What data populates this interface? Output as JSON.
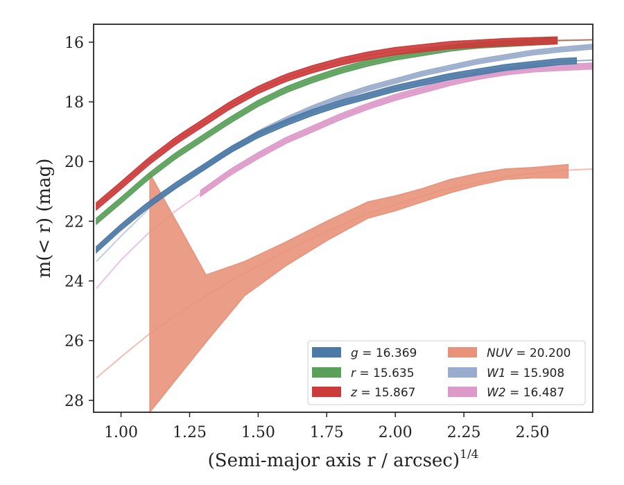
{
  "chart_data": {
    "type": "line",
    "title": "",
    "xlabel": "(Semi-major axis r / arcsec)",
    "xlabel_exponent": "1/4",
    "ylabel": "m(< r) (mag)",
    "xlim": [
      0.9,
      2.72
    ],
    "ylim": [
      28.4,
      15.4
    ],
    "y_inverted": true,
    "grid": false,
    "legend_position": "lower-right",
    "x_ticks": [
      "1.00",
      "1.25",
      "1.50",
      "1.75",
      "2.00",
      "2.25",
      "2.50"
    ],
    "x_tick_values": [
      1.0,
      1.25,
      1.5,
      1.75,
      2.0,
      2.25,
      2.5
    ],
    "y_ticks": [
      "16",
      "18",
      "20",
      "22",
      "24",
      "26",
      "28"
    ],
    "y_tick_values": [
      16,
      18,
      20,
      22,
      24,
      26,
      28
    ],
    "series": [
      {
        "name": "g",
        "legend": "g = 16.369",
        "color": "#4c7aa6",
        "model_x": [
          0.91,
          1.0,
          1.1,
          1.2,
          1.3,
          1.4,
          1.5,
          1.6,
          1.7,
          1.8,
          1.9,
          2.0,
          2.1,
          2.2,
          2.3,
          2.4,
          2.5,
          2.6,
          2.72
        ],
        "model_y": [
          22.95,
          22.2,
          21.45,
          20.8,
          20.2,
          19.6,
          19.1,
          18.7,
          18.35,
          18.05,
          17.8,
          17.55,
          17.35,
          17.15,
          17.0,
          16.85,
          16.75,
          16.65,
          16.6
        ],
        "data_x": [
          0.91,
          2.66
        ],
        "band_width": 0.1
      },
      {
        "name": "r",
        "legend": "r = 15.635",
        "color": "#5aa05a",
        "model_x": [
          0.91,
          1.0,
          1.1,
          1.2,
          1.3,
          1.4,
          1.5,
          1.6,
          1.7,
          1.8,
          1.9,
          2.0,
          2.1,
          2.2,
          2.3,
          2.4,
          2.5,
          2.6,
          2.72
        ],
        "model_y": [
          22.0,
          21.3,
          20.5,
          19.8,
          19.2,
          18.6,
          18.05,
          17.6,
          17.25,
          16.95,
          16.7,
          16.5,
          16.35,
          16.2,
          16.1,
          16.05,
          16.0,
          15.95,
          15.92
        ],
        "data_x": [
          0.91,
          2.59
        ],
        "band_width": 0.1
      },
      {
        "name": "z",
        "legend": "z = 15.867",
        "color": "#cc3a3a",
        "model_x": [
          0.91,
          1.0,
          1.1,
          1.2,
          1.3,
          1.4,
          1.5,
          1.6,
          1.7,
          1.8,
          1.9,
          2.0,
          2.1,
          2.2,
          2.3,
          2.4,
          2.5,
          2.6,
          2.72
        ],
        "model_y": [
          21.5,
          20.8,
          20.0,
          19.3,
          18.7,
          18.1,
          17.6,
          17.2,
          16.9,
          16.65,
          16.45,
          16.3,
          16.2,
          16.1,
          16.05,
          16.0,
          15.97,
          15.94,
          15.92
        ],
        "data_x": [
          0.91,
          2.59
        ],
        "band_width": 0.12
      },
      {
        "name": "NUV",
        "legend": "NUV = 20.200",
        "color": "#e8927a",
        "model_x": [
          0.91,
          1.0,
          1.1,
          1.2,
          1.3,
          1.4,
          1.5,
          1.6,
          1.7,
          1.8,
          1.9,
          2.0,
          2.1,
          2.2,
          2.3,
          2.4,
          2.5,
          2.6,
          2.72
        ],
        "model_y": [
          27.25,
          26.55,
          25.8,
          25.15,
          24.55,
          24.0,
          23.5,
          23.0,
          22.55,
          22.15,
          21.75,
          21.45,
          21.15,
          20.9,
          20.7,
          20.5,
          20.4,
          20.3,
          20.25
        ],
        "band_x": [
          1.105,
          1.31,
          1.45,
          1.6,
          1.75,
          1.9,
          2.0,
          2.1,
          2.2,
          2.3,
          2.4,
          2.5,
          2.63
        ],
        "band_upper": [
          20.4,
          23.8,
          23.35,
          22.7,
          22.0,
          21.35,
          21.15,
          20.9,
          20.6,
          20.4,
          20.25,
          20.2,
          20.1
        ],
        "band_lower": [
          28.4,
          26.05,
          24.5,
          23.5,
          22.65,
          21.9,
          21.65,
          21.35,
          21.05,
          20.8,
          20.6,
          20.55,
          20.55
        ]
      },
      {
        "name": "W1",
        "legend": "W1 = 15.908",
        "color": "#9aaccc",
        "model_x": [
          0.91,
          1.0,
          1.1,
          1.2,
          1.3,
          1.4,
          1.5,
          1.6,
          1.7,
          1.8,
          1.9,
          2.0,
          2.1,
          2.2,
          2.3,
          2.4,
          2.5,
          2.6,
          2.72
        ],
        "model_y": [
          23.35,
          22.5,
          21.6,
          20.85,
          20.2,
          19.6,
          19.05,
          18.6,
          18.2,
          17.85,
          17.55,
          17.3,
          17.05,
          16.85,
          16.65,
          16.5,
          16.35,
          16.25,
          16.15
        ],
        "data_x": [
          1.29,
          2.72
        ],
        "band_width": 0.08
      },
      {
        "name": "W2",
        "legend": "W2 = 16.487",
        "color": "#dd99c8",
        "model_x": [
          0.91,
          1.0,
          1.1,
          1.2,
          1.3,
          1.4,
          1.5,
          1.6,
          1.7,
          1.8,
          1.9,
          2.0,
          2.1,
          2.2,
          2.3,
          2.4,
          2.5,
          2.6,
          2.72
        ],
        "model_y": [
          24.25,
          23.3,
          22.4,
          21.65,
          21.0,
          20.35,
          19.8,
          19.3,
          18.9,
          18.5,
          18.15,
          17.85,
          17.6,
          17.35,
          17.15,
          17.0,
          16.9,
          16.85,
          16.8
        ],
        "data_x": [
          1.29,
          2.72
        ],
        "band_width": 0.1
      }
    ],
    "legend_entries": [
      {
        "prefix": "g",
        "value": " = 16.369",
        "color": "#4c7aa6"
      },
      {
        "prefix": "r",
        "value": " = 15.635",
        "color": "#5aa05a"
      },
      {
        "prefix": "z",
        "value": " = 15.867",
        "color": "#cc3a3a"
      },
      {
        "prefix": "NUV",
        "value": " = 20.200",
        "color": "#e8927a"
      },
      {
        "prefix": "W1",
        "value": " = 15.908",
        "color": "#9aaccc"
      },
      {
        "prefix": "W2",
        "value": " = 16.487",
        "color": "#dd99c8"
      }
    ]
  }
}
